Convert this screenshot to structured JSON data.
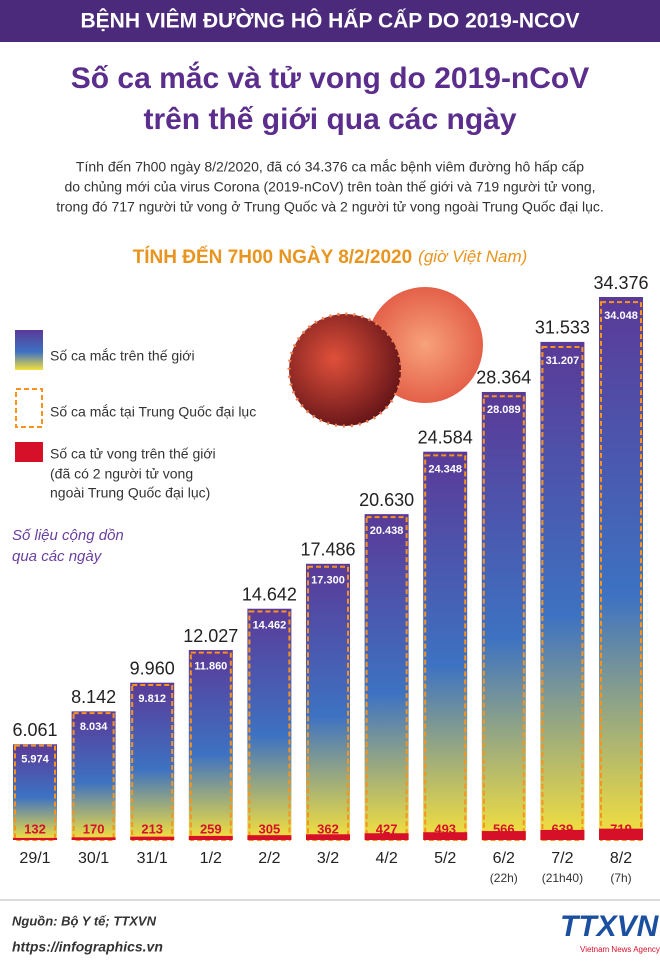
{
  "header": "BỆNH VIÊM ĐƯỜNG HÔ HẤP CẤP DO 2019-NCOV",
  "chart_data": {
    "type": "bar",
    "title_lines": [
      "Số ca mắc và tử vong do 2019-nCoV",
      "trên thế giới qua các ngày"
    ],
    "description_lines": [
      "Tính đến 7h00 ngày 8/2/2020, đã có 34.376 ca mắc bệnh viêm đường hô hấp cấp",
      "do chủng mới của virus Corona (2019-nCoV) trên toàn thế giới và 719 người tử vong,",
      "trong đó 717 người tử vong ở Trung Quốc và 2 người tử vong ngoài Trung Quốc đại lục."
    ],
    "subtitle": "TÍNH ĐẾN 7H00 NGÀY 8/2/2020",
    "subtitle_note": "(giờ Việt Nam)",
    "categories": [
      "29/1",
      "30/1",
      "31/1",
      "1/2",
      "2/2",
      "3/2",
      "4/2",
      "5/2",
      "6/2",
      "7/2",
      "8/2"
    ],
    "category_notes": [
      null,
      null,
      null,
      null,
      null,
      null,
      null,
      null,
      "(22h)",
      "(21h40)",
      "(7h)"
    ],
    "series": [
      {
        "name": "Số ca mắc trên thế giới",
        "color": [
          "#5a3a98",
          "#3d72c2",
          "#f6e13c"
        ],
        "values": [
          6061,
          8142,
          9960,
          12027,
          14642,
          17486,
          20630,
          24584,
          28364,
          31533,
          34376
        ],
        "value_labels": [
          "6.061",
          "8.142",
          "9.960",
          "12.027",
          "14.642",
          "17.486",
          "20.630",
          "24.584",
          "28.364",
          "31.533",
          "34.376"
        ]
      },
      {
        "name": "Số ca mắc tại Trung Quốc đại lục",
        "color": "#f7931e",
        "values": [
          5974,
          8034,
          9812,
          11860,
          14462,
          17300,
          20438,
          24348,
          28089,
          31207,
          34048
        ],
        "value_labels": [
          "5.974",
          "8.034",
          "9.812",
          "11.860",
          "14.462",
          "17.300",
          "20.438",
          "24.348",
          "28.089",
          "31.207",
          "34.048"
        ]
      },
      {
        "name": "Số ca tử vong trên thế giới",
        "color": "#d7102a",
        "values": [
          132,
          170,
          213,
          259,
          305,
          362,
          427,
          493,
          566,
          639,
          719
        ]
      }
    ],
    "legend_note_lines": [
      "(đã có 2 người tử vong",
      "ngoài Trung Quốc đại lục)"
    ],
    "annotation_lines": [
      "Số liệu cộng dồn",
      "qua các ngày"
    ]
  },
  "source": "Nguồn: Bộ Y tế; TTXVN",
  "url": "https://infographics.vn",
  "logo": "TTXVN",
  "logo_subtitle": "Vietnam News Agency"
}
